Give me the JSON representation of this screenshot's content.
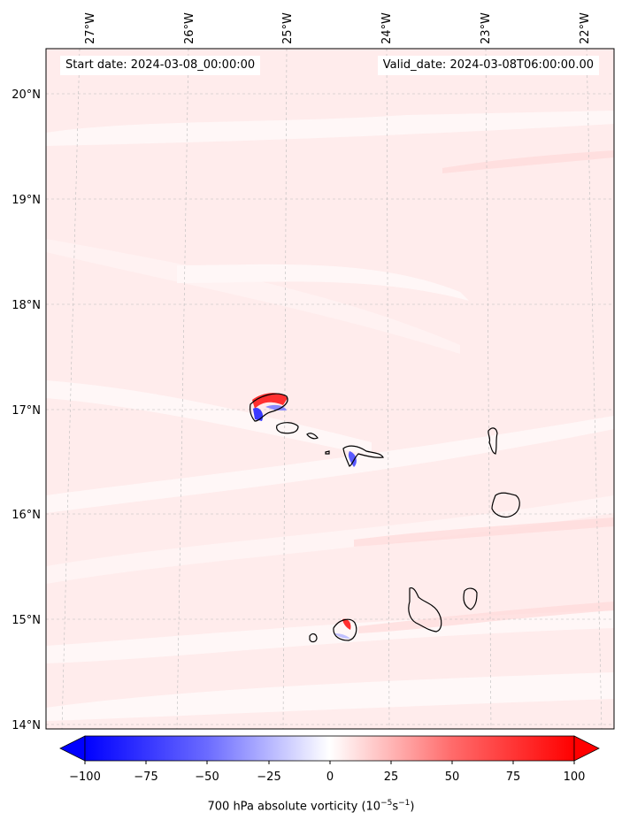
{
  "header": {
    "start_date": "Start date: 2024-03-08_00:00:00",
    "valid_date": "Valid_date: 2024-03-08T06:00:00.00"
  },
  "map": {
    "lon_labels": [
      "27°W",
      "26°W",
      "25°W",
      "24°W",
      "23°W",
      "22°W"
    ],
    "lat_labels": [
      "20°N",
      "19°N",
      "18°N",
      "17°N",
      "16°N",
      "15°N",
      "14°N"
    ],
    "extent": {
      "lon_min": -27.3,
      "lon_max": -21.7,
      "lat_min": 13.97,
      "lat_max": 20.42
    },
    "gridlines": true,
    "features": [
      "Santo Antão",
      "São Vicente",
      "Santa Luzia",
      "São Nicolau",
      "Sal",
      "Boa Vista",
      "Maio",
      "Santiago",
      "Fogo",
      "Brava"
    ]
  },
  "colorbar": {
    "min": -100,
    "max": 100,
    "extend": "both",
    "tick_labels": [
      "−100",
      "−75",
      "−50",
      "−25",
      "0",
      "25",
      "50",
      "75",
      "100"
    ],
    "title_prefix": "700 hPa absolute vorticity (10",
    "title_exp1": "−5",
    "title_mid": "s",
    "title_exp2": "−1",
    "title_suffix": ")",
    "colors": {
      "negative": "#0000ff",
      "zero": "#ffffff",
      "positive": "#ff0000"
    }
  }
}
